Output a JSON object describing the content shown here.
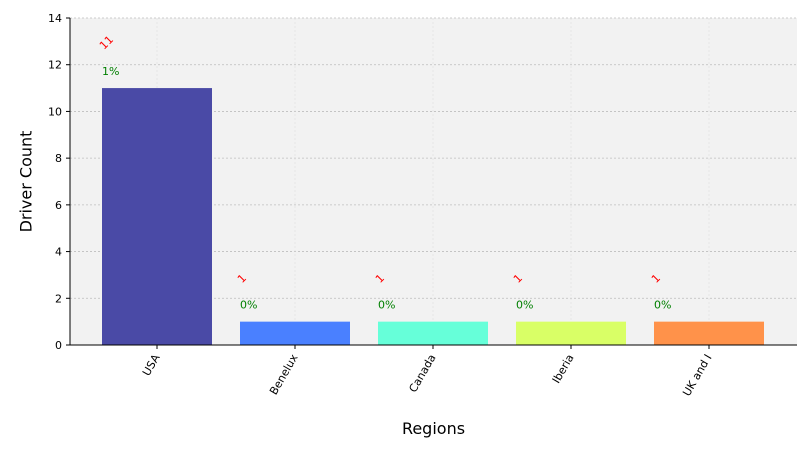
{
  "chart_data": {
    "type": "bar",
    "categories": [
      "USA",
      "Benelux",
      "Canada",
      "Iberia",
      "UK and I"
    ],
    "values": [
      11,
      1,
      1,
      1,
      1
    ],
    "count_labels": [
      "11",
      "1",
      "1",
      "1",
      "1"
    ],
    "percent_labels": [
      "1%",
      "0%",
      "0%",
      "0%",
      "0%"
    ],
    "bar_colors": [
      "#4a4aa6",
      "#4a80ff",
      "#66ffd9",
      "#d9ff66",
      "#ff924a"
    ],
    "xlabel": "Regions",
    "ylabel": "Driver Count",
    "ylim": [
      0,
      14
    ],
    "yticks": [
      0,
      2,
      4,
      6,
      8,
      10,
      12,
      14
    ],
    "grid": true,
    "plot_background": "#f2f2f2"
  }
}
